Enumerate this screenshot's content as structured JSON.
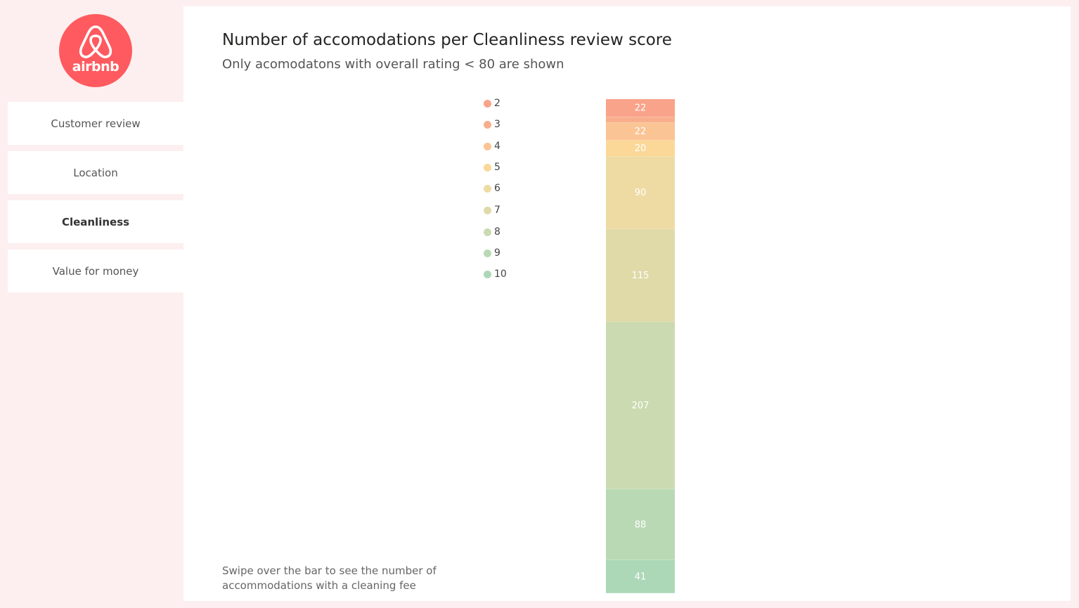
{
  "sidebar": {
    "logo_text": "airbnb",
    "items": [
      {
        "label": "Customer review",
        "active": false
      },
      {
        "label": "Location",
        "active": false
      },
      {
        "label": "Cleanliness",
        "active": true
      },
      {
        "label": "Value for money",
        "active": false
      }
    ]
  },
  "header": {
    "title": "Number of accomodations per Cleanliness review score",
    "subtitle": "Only acomodatons with overall rating < 80 are shown"
  },
  "footnote": "Swipe over the bar to see the number of accommodations with a cleaning fee",
  "colors": {
    "brand": "#ff5a5f",
    "background": "#fdeff0",
    "panel": "#ffffff"
  },
  "chart_data": {
    "type": "bar",
    "stacked": true,
    "categories": [
      ""
    ],
    "legend_position": "left",
    "grid": false,
    "series": [
      {
        "name": "2",
        "values": [
          22
        ],
        "color": "#f9a38a"
      },
      {
        "name": "3",
        "values": [
          7
        ],
        "color": "#f8ae8c"
      },
      {
        "name": "4",
        "values": [
          22
        ],
        "color": "#fbc494"
      },
      {
        "name": "5",
        "values": [
          20
        ],
        "color": "#fbd898"
      },
      {
        "name": "6",
        "values": [
          90
        ],
        "color": "#eedba4"
      },
      {
        "name": "7",
        "values": [
          115
        ],
        "color": "#dfdaa8"
      },
      {
        "name": "8",
        "values": [
          207
        ],
        "color": "#cbdab0"
      },
      {
        "name": "9",
        "values": [
          88
        ],
        "color": "#b9d9b4"
      },
      {
        "name": "10",
        "values": [
          41
        ],
        "color": "#acd8b8"
      }
    ]
  }
}
